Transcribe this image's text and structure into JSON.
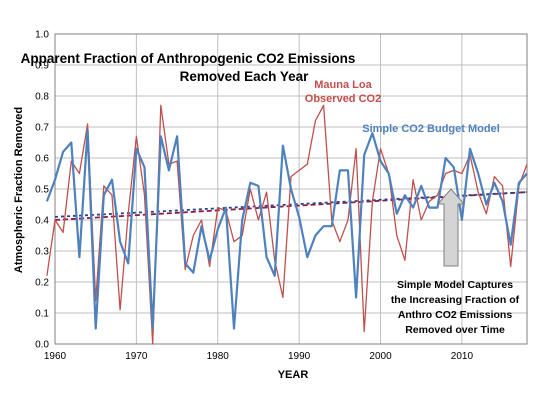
{
  "colors": {
    "red_series": "#c0504d",
    "blue_series": "#4f81bd",
    "red_trend": "#8b1f3d",
    "blue_trend": "#2e3f8f",
    "grid": "#bfbfbf",
    "arrow_fill": "#d4d4d4",
    "arrow_stroke": "#7f7f7f"
  },
  "chart_data": {
    "type": "line",
    "title_lines": [
      "Apparent Fraction of Anthropogenic CO2 Emissions",
      "Removed Each Year"
    ],
    "xlabel": "YEAR",
    "ylabel": "Atmospheric Fraction Removed",
    "xlim": [
      1960,
      2018
    ],
    "ylim": [
      0,
      1
    ],
    "x_ticks": [
      1960,
      1970,
      1980,
      1990,
      2000,
      2010
    ],
    "y_ticks": [
      "0.0",
      "0.1",
      "0.2",
      "0.3",
      "0.4",
      "0.5",
      "0.6",
      "0.7",
      "0.8",
      "0.9",
      "1.0"
    ],
    "grid": true,
    "x": [
      1959,
      1960,
      1961,
      1962,
      1963,
      1964,
      1965,
      1966,
      1967,
      1968,
      1969,
      1970,
      1971,
      1972,
      1973,
      1974,
      1975,
      1976,
      1977,
      1978,
      1979,
      1980,
      1981,
      1982,
      1983,
      1984,
      1985,
      1986,
      1987,
      1988,
      1989,
      1990,
      1991,
      1992,
      1993,
      1994,
      1995,
      1996,
      1997,
      1998,
      1999,
      2000,
      2001,
      2002,
      2003,
      2004,
      2005,
      2006,
      2007,
      2008,
      2009,
      2010,
      2011,
      2012,
      2013,
      2014,
      2015,
      2016,
      2017,
      2018
    ],
    "series": [
      {
        "name": "Mauna Loa Observed CO2",
        "values": [
          0.22,
          0.4,
          0.36,
          0.59,
          0.55,
          0.71,
          0.14,
          0.51,
          0.48,
          0.11,
          0.42,
          0.67,
          0.48,
          0.0,
          0.77,
          0.58,
          0.59,
          0.24,
          0.35,
          0.4,
          0.25,
          0.44,
          0.43,
          0.33,
          0.35,
          0.5,
          0.4,
          0.49,
          0.27,
          0.15,
          0.54,
          0.56,
          0.58,
          0.72,
          0.77,
          0.4,
          0.33,
          0.4,
          0.63,
          0.04,
          0.46,
          0.63,
          0.55,
          0.35,
          0.27,
          0.53,
          0.4,
          0.46,
          0.48,
          0.55,
          0.56,
          0.55,
          0.61,
          0.49,
          0.42,
          0.54,
          0.51,
          0.25,
          0.51,
          0.58
        ]
      },
      {
        "name": "Simple CO2 Budget Model",
        "values": [
          0.46,
          0.53,
          0.62,
          0.65,
          0.28,
          0.69,
          0.05,
          0.48,
          0.53,
          0.33,
          0.26,
          0.63,
          0.57,
          0.05,
          0.67,
          0.56,
          0.67,
          0.26,
          0.23,
          0.38,
          0.27,
          0.37,
          0.44,
          0.05,
          0.4,
          0.52,
          0.51,
          0.28,
          0.22,
          0.64,
          0.5,
          0.41,
          0.28,
          0.35,
          0.38,
          0.38,
          0.56,
          0.56,
          0.15,
          0.61,
          0.68,
          0.59,
          0.55,
          0.42,
          0.48,
          0.44,
          0.51,
          0.44,
          0.44,
          0.6,
          0.57,
          0.4,
          0.63,
          0.55,
          0.45,
          0.52,
          0.46,
          0.32,
          0.52,
          0.55
        ]
      }
    ],
    "trend_lines": [
      {
        "series": "Mauna Loa Observed CO2",
        "x": [
          1959,
          2018
        ],
        "y": [
          0.4,
          0.49
        ]
      },
      {
        "series": "Simple CO2 Budget Model",
        "x": [
          1959,
          2018
        ],
        "y": [
          0.41,
          0.49
        ]
      }
    ],
    "annotations": {
      "mauna_loa": [
        "Mauna Loa",
        "Observed CO2"
      ],
      "model": "Simple CO2 Budget Model",
      "note": [
        "Simple Model Captures",
        "the Increasing Fraction of",
        "Anthro CO2 Emissions",
        "Removed over Time"
      ]
    }
  }
}
